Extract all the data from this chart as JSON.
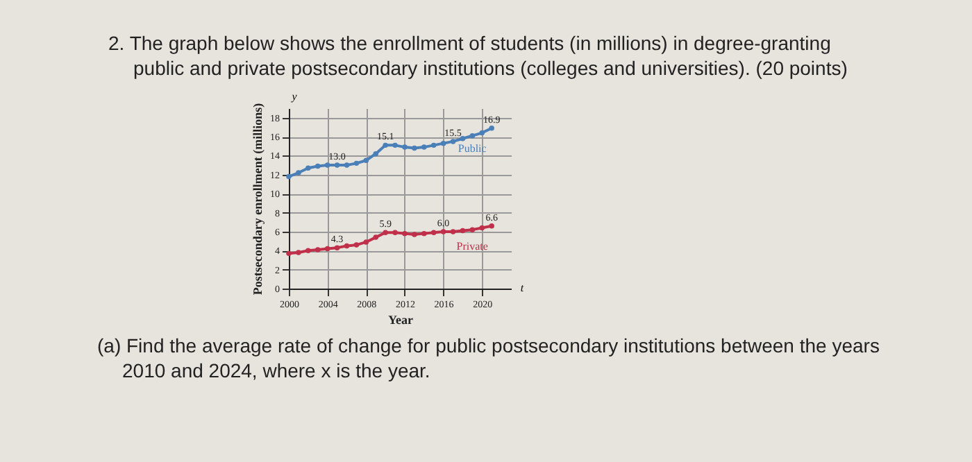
{
  "chart_data": {
    "type": "line",
    "title": "2. The graph below shows the enrollment of students (in millions) in degree-granting public and private postsecondary institutions (colleges and universities). (20 points)",
    "xlabel": "Year",
    "ylabel": "Postsecondary enrollment (millions)",
    "x": [
      2000,
      2001,
      2002,
      2003,
      2004,
      2005,
      2006,
      2007,
      2008,
      2009,
      2010,
      2011,
      2012,
      2013,
      2014,
      2015,
      2016,
      2017,
      2018,
      2019,
      2020,
      2021
    ],
    "series": [
      {
        "name": "Public",
        "color": "#4a7fb8",
        "values": [
          11.8,
          12.2,
          12.7,
          12.9,
          13.0,
          13.0,
          13.0,
          13.2,
          13.5,
          14.2,
          15.1,
          15.1,
          14.9,
          14.8,
          14.9,
          15.1,
          15.3,
          15.5,
          15.8,
          16.1,
          16.4,
          16.9
        ],
        "value_labels": [
          null,
          null,
          null,
          null,
          null,
          "13.0",
          null,
          null,
          null,
          null,
          "15.1",
          null,
          null,
          null,
          null,
          null,
          null,
          "15.5",
          null,
          null,
          null,
          "16.9"
        ]
      },
      {
        "name": "Private",
        "color": "#c0304a",
        "values": [
          3.7,
          3.8,
          4.0,
          4.1,
          4.2,
          4.3,
          4.5,
          4.6,
          4.9,
          5.4,
          5.9,
          5.9,
          5.8,
          5.7,
          5.8,
          5.9,
          6.0,
          6.0,
          6.1,
          6.2,
          6.4,
          6.6
        ],
        "value_labels": [
          null,
          null,
          null,
          null,
          null,
          "4.3",
          null,
          null,
          null,
          null,
          "5.9",
          null,
          null,
          null,
          null,
          null,
          "6.0",
          null,
          null,
          null,
          null,
          "6.6"
        ]
      }
    ],
    "xlim": [
      2000,
      2023
    ],
    "xticks": [
      2000,
      2004,
      2008,
      2012,
      2016,
      2020
    ],
    "ylim": [
      0,
      19
    ],
    "yticks": [
      0,
      2,
      4,
      6,
      8,
      10,
      12,
      14,
      16,
      18
    ],
    "grid": true,
    "marker": "circle",
    "line_style": "solid",
    "annotations": [
      "y",
      "t",
      "(a) Find the average rate of change for public postsecondary institutions between the years 2010 and 2024, where x is the year."
    ]
  }
}
